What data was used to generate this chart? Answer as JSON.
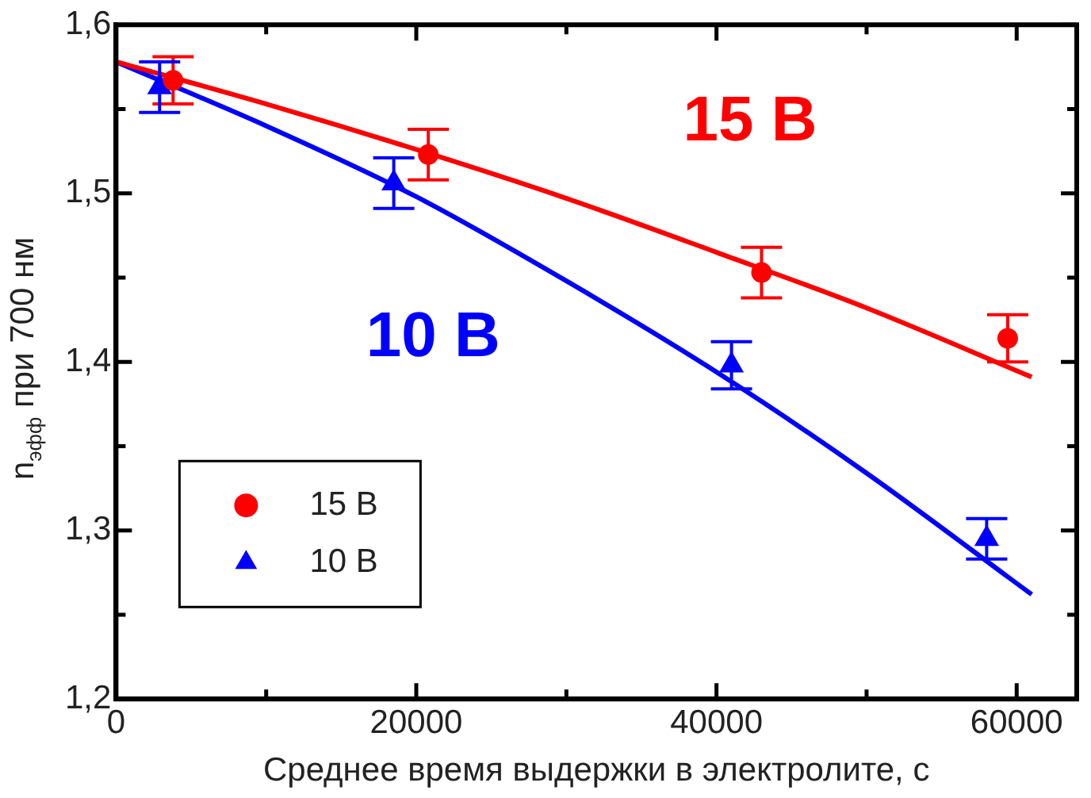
{
  "chart_data": {
    "type": "scatter",
    "xlabel": "Среднее время выдержки в электролите, с",
    "ylabel": "n$_{эфф}$ при 700 нм",
    "xlim": [
      0,
      64000
    ],
    "ylim": [
      1.2,
      1.6
    ],
    "xticks": [
      0,
      {
        "value": 10000,
        "label": null
      },
      20000,
      {
        "value": 30000,
        "label": null
      },
      40000,
      {
        "value": 50000,
        "label": null
      },
      60000
    ],
    "yticks": [
      {
        "value": 1.2,
        "label": "1,2"
      },
      {
        "value": 1.25,
        "label": null
      },
      {
        "value": 1.3,
        "label": "1,3"
      },
      {
        "value": 1.35,
        "label": null
      },
      {
        "value": 1.4,
        "label": "1,4"
      },
      {
        "value": 1.45,
        "label": null
      },
      {
        "value": 1.5,
        "label": "1,5"
      },
      {
        "value": 1.55,
        "label": null
      },
      {
        "value": 1.6,
        "label": "1,6"
      }
    ],
    "grid": false,
    "legend": "bottom left",
    "series": [
      {
        "name": "15 В",
        "color": "#ff0000",
        "marker": "circle",
        "x": [
          3800,
          20800,
          43000,
          59400
        ],
        "values": [
          1.567,
          1.523,
          1.453,
          1.414
        ],
        "errors": [
          0.014,
          0.015,
          0.015,
          0.014
        ]
      },
      {
        "name": "10 В",
        "color": "#0000ff",
        "marker": "triangle",
        "x": [
          2900,
          18500,
          41000,
          58000
        ],
        "values": [
          1.563,
          1.506,
          1.398,
          1.295
        ],
        "errors": [
          0.015,
          0.015,
          0.014,
          0.012
        ]
      },
      {
        "type": "line",
        "color": "#ff0000",
        "x": [
          0,
          10000,
          20000,
          30000,
          40000,
          50000,
          61000
        ],
        "values": [
          1.578,
          1.553,
          1.526,
          1.497,
          1.465,
          1.432,
          1.391
        ]
      },
      {
        "type": "line",
        "color": "#0000ff",
        "x": [
          0,
          10000,
          20000,
          30000,
          40000,
          50000,
          61000
        ],
        "values": [
          1.578,
          1.54,
          1.498,
          1.448,
          1.394,
          1.334,
          1.262
        ]
      }
    ],
    "annotations": [
      "15 В",
      "10 В"
    ]
  }
}
